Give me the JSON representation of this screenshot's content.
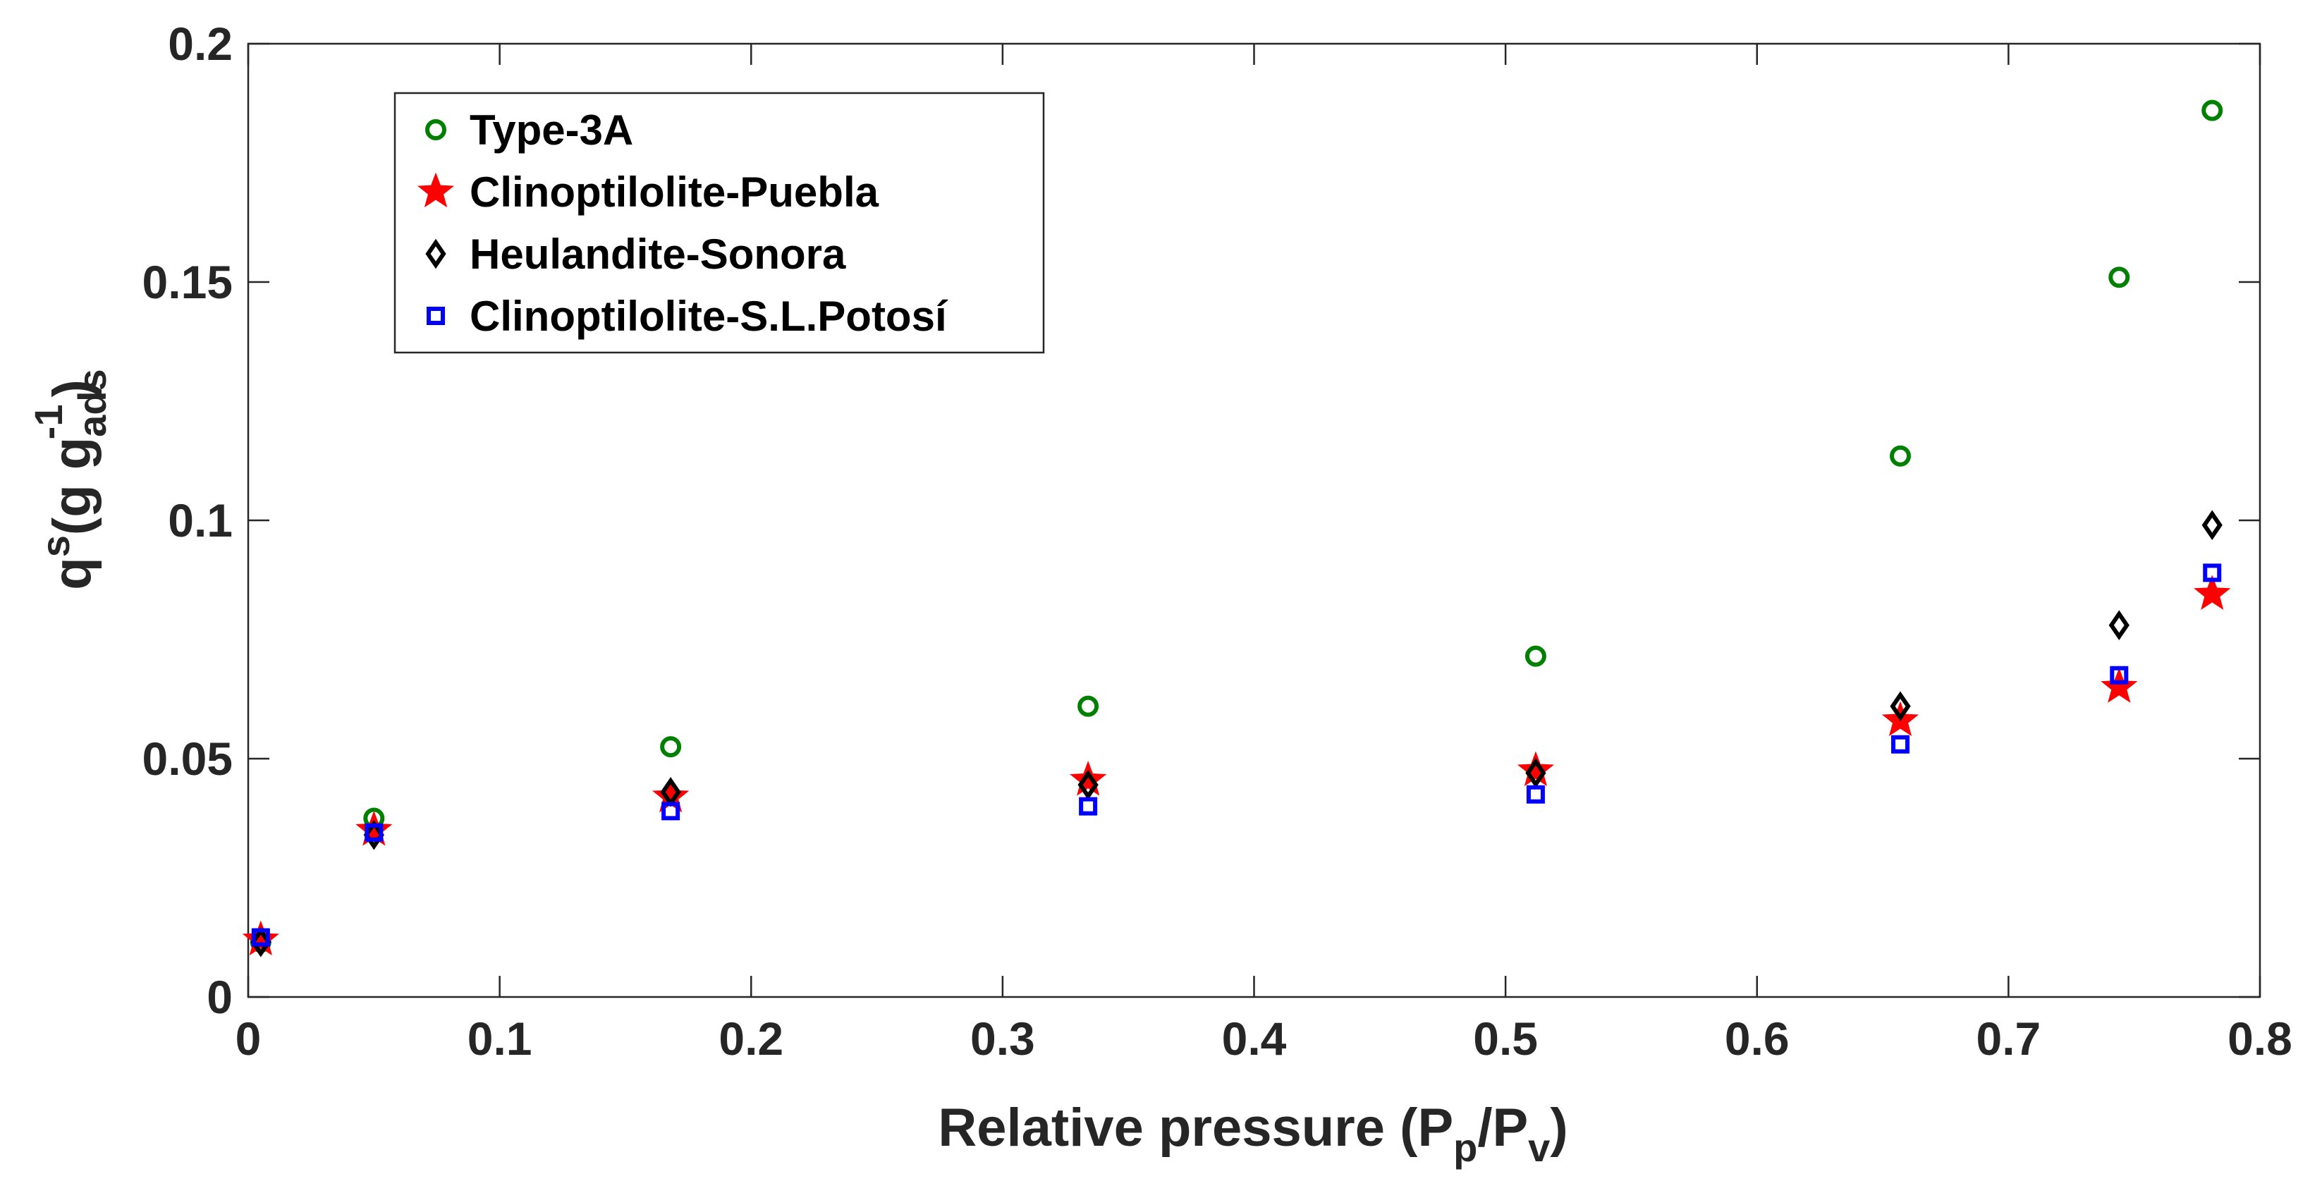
{
  "chart_data": {
    "type": "scatter",
    "title": "",
    "xlabel": {
      "main": "Relative pressure (P",
      "sub1": "p",
      "mid": "/P",
      "sub2": "v",
      "end": ")"
    },
    "ylabel": {
      "main": "q",
      "sup1": "s",
      "mid": "(g g",
      "sub": "ads",
      "sup2": "-1",
      "end": ")"
    },
    "xlim": [
      0,
      0.8
    ],
    "ylim": [
      0,
      0.2
    ],
    "xticks": [
      0,
      0.1,
      0.2,
      0.3,
      0.4,
      0.5,
      0.6,
      0.7,
      0.8
    ],
    "xtick_labels": [
      "0",
      "0.1",
      "0.2",
      "0.3",
      "0.4",
      "0.5",
      "0.6",
      "0.7",
      "0.8"
    ],
    "yticks": [
      0,
      0.05,
      0.1,
      0.15,
      0.2
    ],
    "ytick_labels": [
      "0",
      "0.05",
      "0.1",
      "0.15",
      "0.2"
    ],
    "grid": false,
    "legend_position": "top-left",
    "series": [
      {
        "name": "Type-3A",
        "marker": "circle",
        "color": "#008000",
        "x": [
          0.005,
          0.05,
          0.168,
          0.334,
          0.512,
          0.657,
          0.744,
          0.781
        ],
        "y": [
          0.0115,
          0.0375,
          0.0525,
          0.061,
          0.0715,
          0.1135,
          0.151,
          0.186
        ]
      },
      {
        "name": "Clinoptilolite-Puebla",
        "marker": "star",
        "color": "#ff0000",
        "x": [
          0.005,
          0.05,
          0.168,
          0.334,
          0.512,
          0.657,
          0.744,
          0.781
        ],
        "y": [
          0.012,
          0.035,
          0.042,
          0.0455,
          0.0475,
          0.058,
          0.065,
          0.0845
        ]
      },
      {
        "name": "Heulandite-Sonora",
        "marker": "diamond",
        "color": "#000000",
        "x": [
          0.005,
          0.05,
          0.168,
          0.334,
          0.512,
          0.657,
          0.744,
          0.781
        ],
        "y": [
          0.0115,
          0.034,
          0.043,
          0.0445,
          0.047,
          0.061,
          0.078,
          0.099
        ]
      },
      {
        "name": "Clinoptilolite-S.L.Potosí",
        "marker": "square",
        "color": "#0000ff",
        "x": [
          0.005,
          0.05,
          0.168,
          0.334,
          0.512,
          0.657,
          0.744,
          0.781
        ],
        "y": [
          0.0125,
          0.0345,
          0.039,
          0.04,
          0.0425,
          0.053,
          0.0675,
          0.089
        ]
      }
    ]
  }
}
